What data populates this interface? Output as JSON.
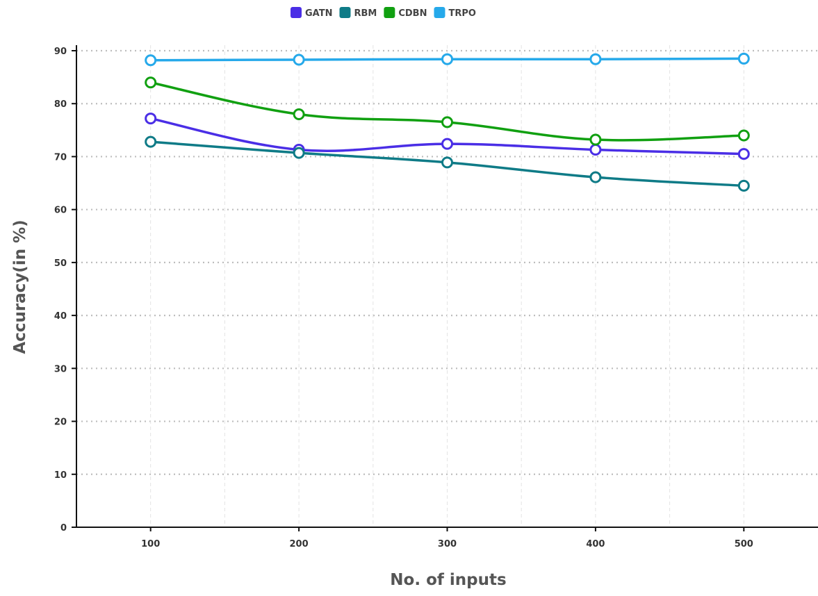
{
  "chart_data": {
    "type": "line",
    "xlabel": "No. of inputs",
    "ylabel": "Accuracy(in %)",
    "x": [
      100,
      200,
      300,
      400,
      500
    ],
    "xlim": [
      50,
      550
    ],
    "ylim": [
      0,
      90
    ],
    "yticks": [
      0,
      10,
      20,
      30,
      40,
      50,
      60,
      70,
      80,
      90
    ],
    "xticks": [
      100,
      200,
      300,
      400,
      500
    ],
    "grid": true,
    "legend_position": "top",
    "series": [
      {
        "name": "GATN",
        "color": "#4a2ee6",
        "values": [
          77.2,
          71.3,
          72.4,
          71.3,
          70.5
        ]
      },
      {
        "name": "RBM",
        "color": "#0f7b87",
        "values": [
          72.8,
          70.7,
          68.9,
          66.1,
          64.5
        ]
      },
      {
        "name": "CDBN",
        "color": "#11a011",
        "values": [
          84.0,
          78.0,
          76.5,
          73.2,
          74.0
        ]
      },
      {
        "name": "TRPO",
        "color": "#26a9ea",
        "values": [
          88.2,
          88.3,
          88.4,
          88.4,
          88.5
        ]
      }
    ]
  }
}
